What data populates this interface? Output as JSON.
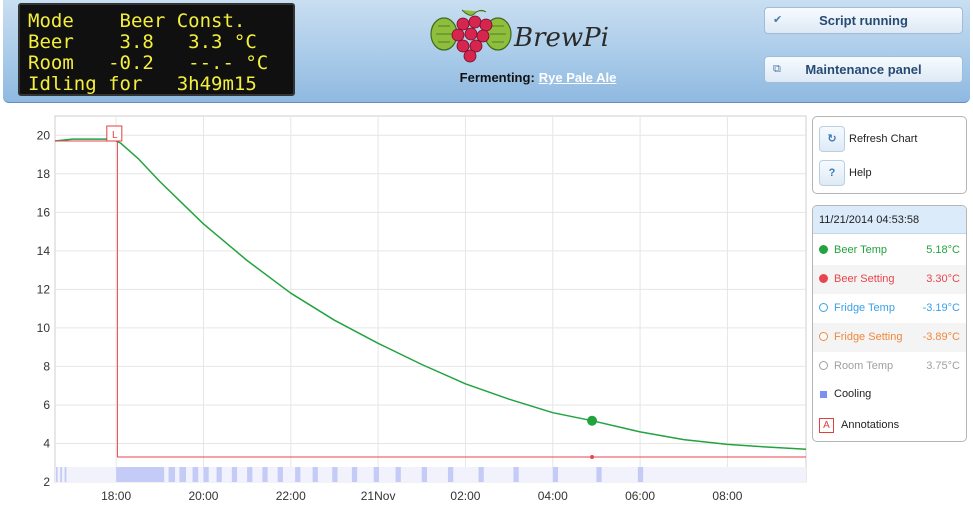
{
  "lcd": {
    "lines": [
      "Mode    Beer Const.",
      "Beer    3.8   3.3 °C",
      "Room   -0.2   --.- °C",
      "Idling for   3h49m15"
    ]
  },
  "brand": {
    "name": "BrewPi"
  },
  "fermenting": {
    "label": "Fermenting:",
    "beer_name": "Rye Pale Ale"
  },
  "header_buttons": {
    "script_status": {
      "label": "Script running",
      "icon": "check-icon"
    },
    "maintenance": {
      "label": "Maintenance panel",
      "icon": "window-restore-icon"
    }
  },
  "controls": {
    "refresh": {
      "label": "Refresh Chart",
      "icon": "refresh-icon"
    },
    "help": {
      "label": "Help",
      "icon": "question-icon",
      "glyph": "?"
    }
  },
  "legend": {
    "timestamp": "11/21/2014 04:53:58",
    "items": [
      {
        "label": "Beer Temp",
        "value": "5.18°C",
        "color": "#22a340",
        "style": "filled",
        "enabled": true
      },
      {
        "label": "Beer Setting",
        "value": "3.30°C",
        "color": "#e8464f",
        "style": "filled",
        "enabled": true
      },
      {
        "label": "Fridge Temp",
        "value": "-3.19°C",
        "color": "#3aa0e8",
        "style": "hollow",
        "enabled": false
      },
      {
        "label": "Fridge Setting",
        "value": "-3.89°C",
        "color": "#f0883e",
        "style": "hollow",
        "enabled": false
      },
      {
        "label": "Room Temp",
        "value": "3.75°C",
        "color": "#a0a0a0",
        "style": "hollow",
        "enabled": false
      }
    ],
    "cooling": {
      "label": "Cooling",
      "color": "#7b8ff5"
    },
    "annotations": {
      "label": "Annotations",
      "glyph": "A",
      "color": "#e04040"
    }
  },
  "chart_data": {
    "type": "line",
    "title": "",
    "xlabel": "",
    "ylabel": "",
    "ylim": [
      2,
      21
    ],
    "yticks": [
      2,
      4,
      6,
      8,
      10,
      12,
      14,
      16,
      18,
      20
    ],
    "xlim": [
      16.6,
      33.8
    ],
    "x_unit": "hours from 2014-11-20 00:00",
    "xticks": [
      {
        "x": 18,
        "label": "18:00"
      },
      {
        "x": 20,
        "label": "20:00"
      },
      {
        "x": 22,
        "label": "22:00"
      },
      {
        "x": 24,
        "label": "21Nov"
      },
      {
        "x": 26,
        "label": "02:00"
      },
      {
        "x": 28,
        "label": "04:00"
      },
      {
        "x": 30,
        "label": "06:00"
      },
      {
        "x": 32,
        "label": "08:00"
      }
    ],
    "grid": true,
    "series": [
      {
        "name": "Beer Temp",
        "color": "#22a340",
        "x": [
          16.6,
          17.0,
          17.5,
          17.9,
          18.1,
          18.5,
          19.0,
          19.5,
          20.0,
          21.0,
          22.0,
          23.0,
          24.0,
          25.0,
          26.0,
          27.0,
          28.0,
          28.9,
          30.0,
          31.0,
          32.0,
          33.0,
          33.8
        ],
        "y": [
          19.7,
          19.8,
          19.8,
          19.8,
          19.6,
          18.8,
          17.6,
          16.5,
          15.4,
          13.5,
          11.8,
          10.4,
          9.2,
          8.1,
          7.1,
          6.3,
          5.6,
          5.18,
          4.6,
          4.2,
          3.95,
          3.8,
          3.7
        ]
      },
      {
        "name": "Beer Setting",
        "color": "#e8464f",
        "x": [
          16.6,
          17.97,
          17.97,
          18.03,
          18.03,
          33.8
        ],
        "y": [
          19.7,
          19.7,
          20,
          20,
          3.3,
          3.3
        ]
      }
    ],
    "highlight": {
      "series": "Beer Temp",
      "x": 28.9,
      "y": 5.18
    },
    "cooling_periods": [
      [
        16.62,
        16.66
      ],
      [
        16.72,
        16.76
      ],
      [
        16.82,
        16.86
      ],
      [
        18.0,
        19.1
      ],
      [
        19.2,
        19.35
      ],
      [
        19.45,
        19.6
      ],
      [
        19.75,
        19.88
      ],
      [
        20.0,
        20.12
      ],
      [
        20.3,
        20.42
      ],
      [
        20.65,
        20.77
      ],
      [
        21.0,
        21.12
      ],
      [
        21.35,
        21.47
      ],
      [
        21.7,
        21.82
      ],
      [
        22.1,
        22.22
      ],
      [
        22.5,
        22.62
      ],
      [
        22.95,
        23.07
      ],
      [
        23.4,
        23.52
      ],
      [
        23.9,
        24.02
      ],
      [
        24.4,
        24.52
      ],
      [
        25.0,
        25.12
      ],
      [
        25.6,
        25.72
      ],
      [
        26.3,
        26.42
      ],
      [
        27.1,
        27.22
      ],
      [
        28.0,
        28.12
      ],
      [
        29.0,
        29.12
      ],
      [
        29.95,
        30.07
      ]
    ],
    "annotations": [
      {
        "x": 17.97,
        "label": "L"
      }
    ]
  }
}
